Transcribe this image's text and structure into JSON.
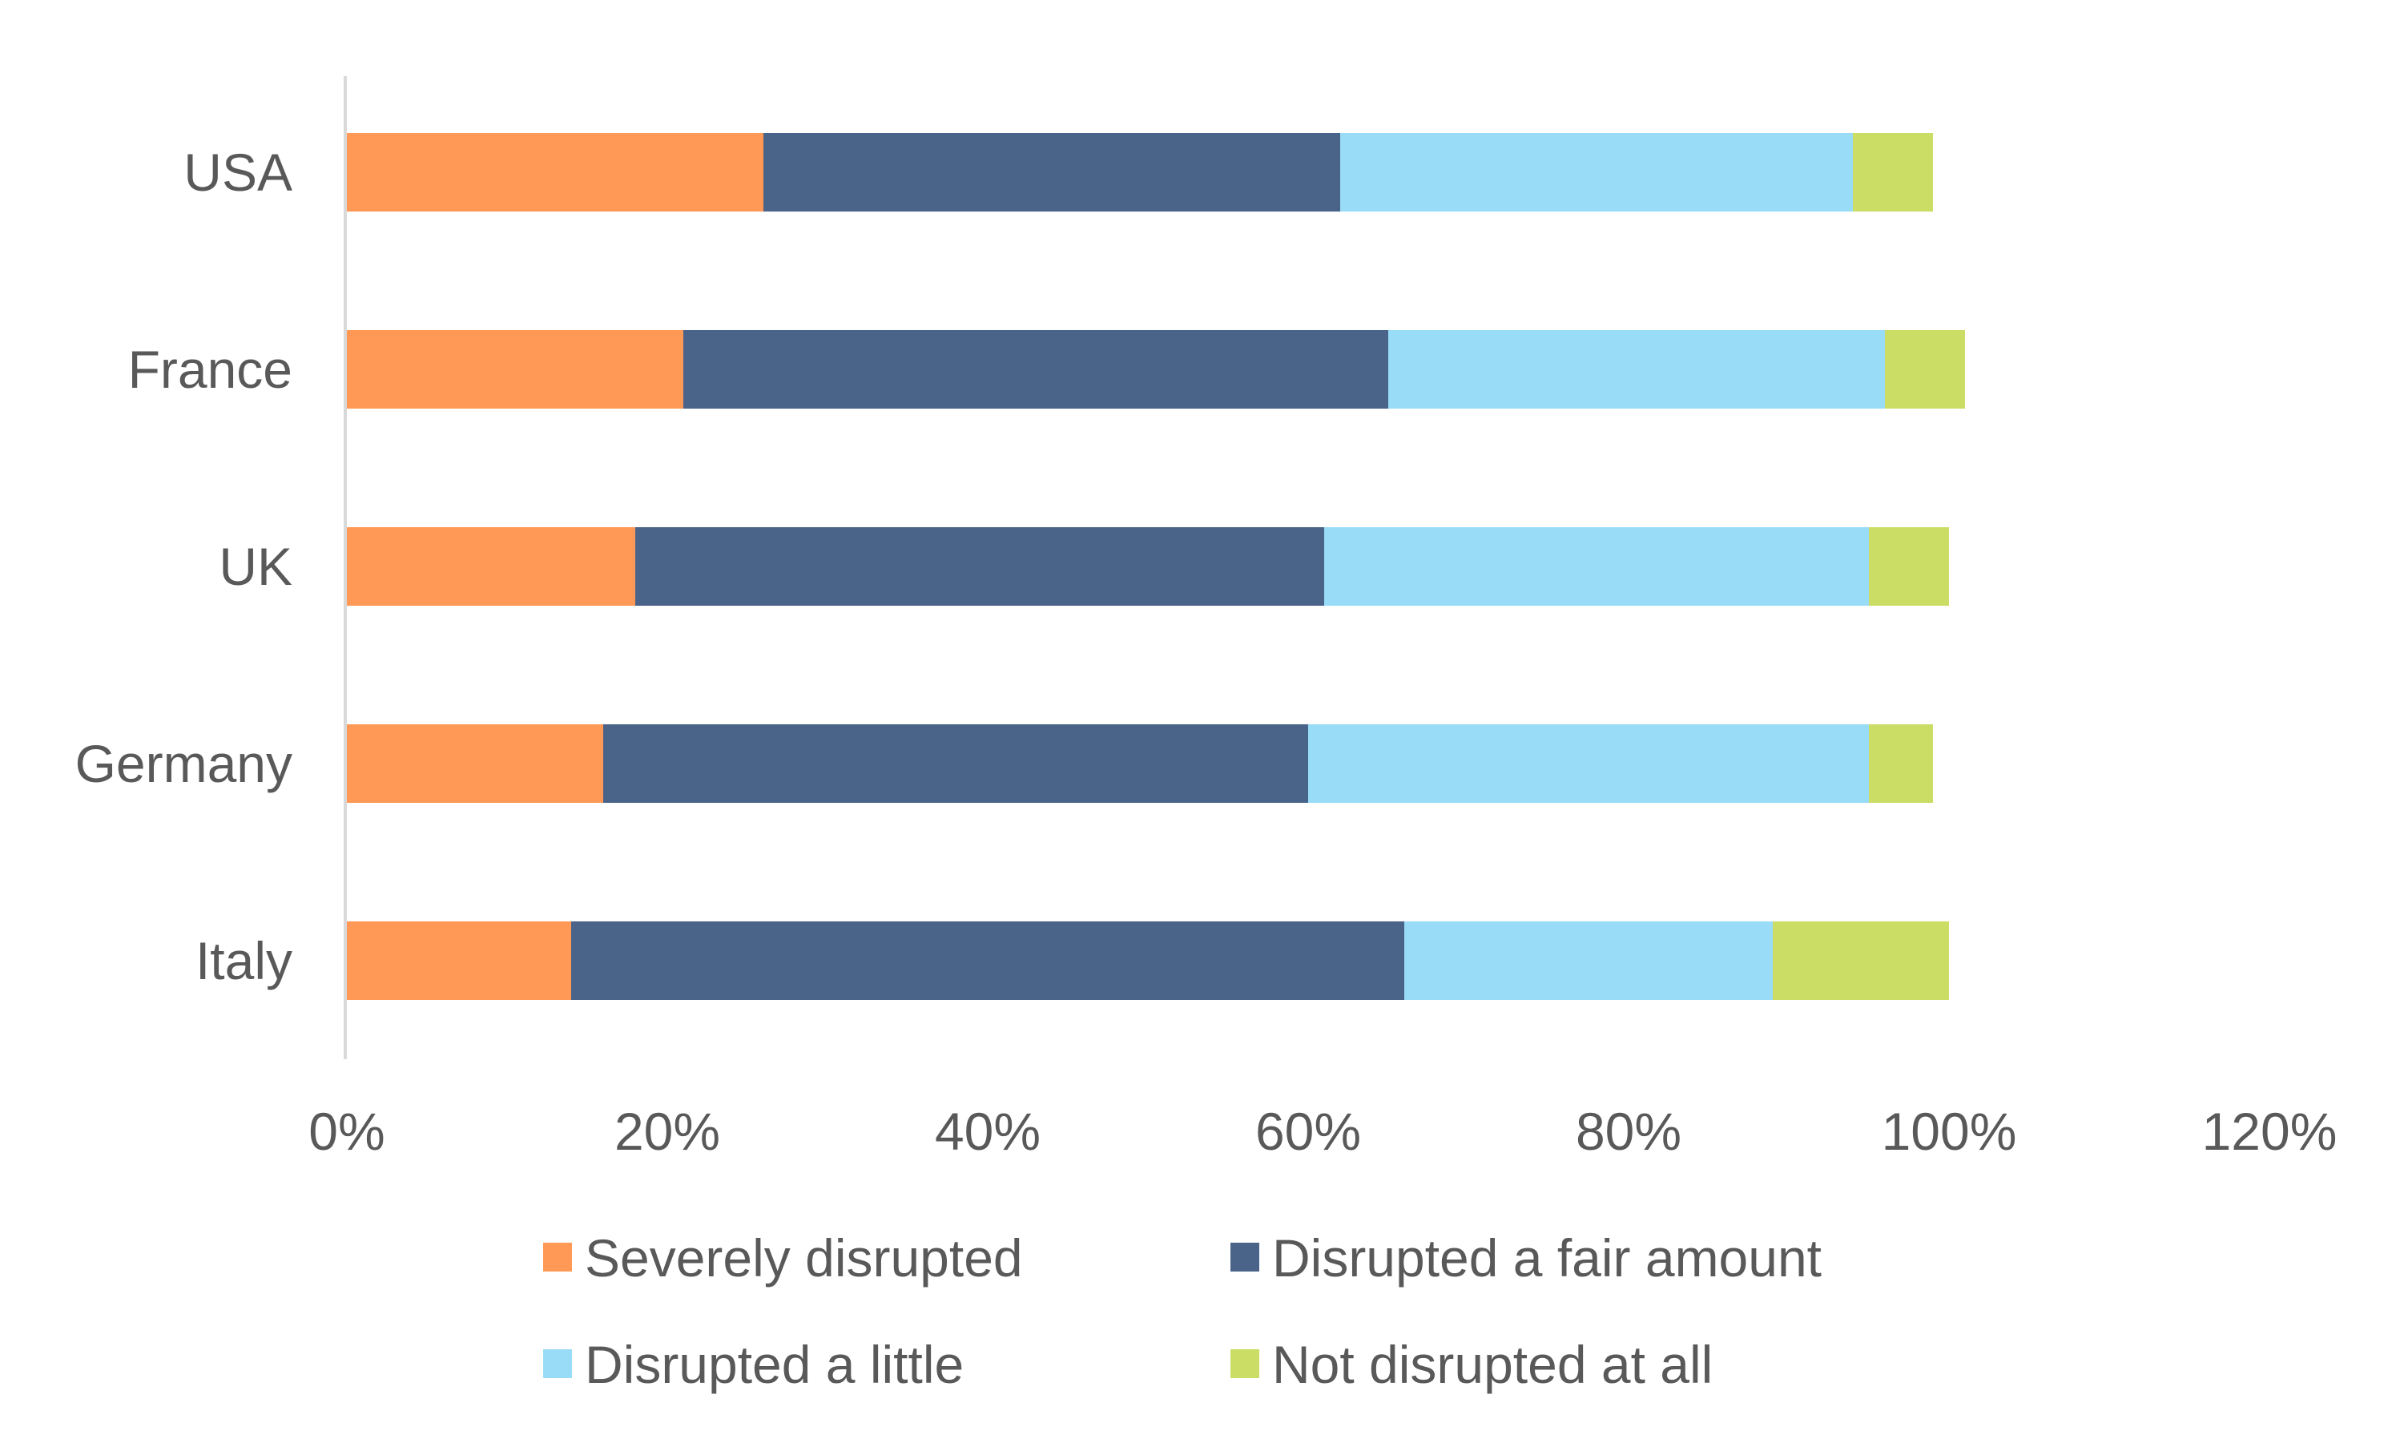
{
  "chart_data": {
    "type": "bar",
    "orientation": "horizontal",
    "stacked": true,
    "categories": [
      "USA",
      "France",
      "UK",
      "Germany",
      "Italy"
    ],
    "series": [
      {
        "name": "Severely disrupted",
        "color": "#FF9955",
        "values": [
          26,
          21,
          18,
          16,
          14
        ]
      },
      {
        "name": "Disrupted a fair amount",
        "color": "#4A6389",
        "values": [
          36,
          44,
          43,
          44,
          52
        ]
      },
      {
        "name": "Disrupted a little",
        "color": "#99DCF8",
        "values": [
          32,
          31,
          34,
          35,
          23
        ]
      },
      {
        "name": "Not disrupted at all",
        "color": "#CCDD66",
        "values": [
          5,
          5,
          5,
          4,
          11
        ]
      }
    ],
    "xlim": [
      0,
      120
    ],
    "xticks": [
      "0%",
      "20%",
      "40%",
      "60%",
      "80%",
      "100%",
      "120%"
    ],
    "grid": false,
    "legend_position": "bottom",
    "title": "",
    "xlabel": "",
    "ylabel": ""
  }
}
